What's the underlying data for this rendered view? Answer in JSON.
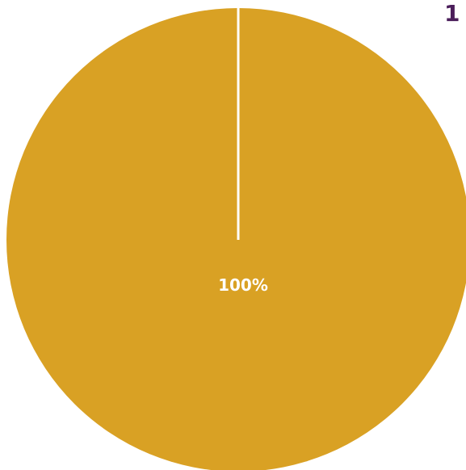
{
  "chart_data": {
    "type": "pie",
    "slices": [
      {
        "value": 100,
        "label": "100%",
        "color": "#d9a124"
      }
    ],
    "separator_color": "#ffffff",
    "label_color": "#ffffff",
    "side_text": "1",
    "side_text_color": "#4b1e5a"
  }
}
